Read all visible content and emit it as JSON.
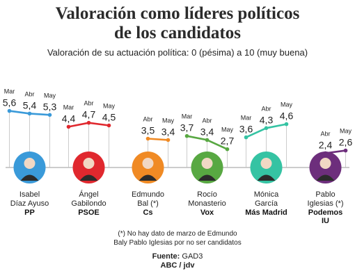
{
  "title_line1": "Valoración como líderes políticos",
  "title_line2": "de los candidatos",
  "subtitle": "Valoración de su actuación política: 0 (pésima) a 10 (muy buena)",
  "note_line1": "(*) No hay dato de marzo de Edmundo",
  "note_line2": "Baly Pablo Iglesias por no ser candidatos",
  "source_label": "Fuente:",
  "source_value": "GAD3",
  "credit": "ABC / jdv",
  "chart_data": {
    "type": "line",
    "scale": [
      0,
      10
    ],
    "candidates": [
      {
        "name_lines": [
          "Isabel",
          "Díaz Ayuso"
        ],
        "party_lines": [
          "PP"
        ],
        "color": "#3a9ad9",
        "points": [
          {
            "month": "Mar",
            "value": "5,6",
            "v": 5.6
          },
          {
            "month": "Abr",
            "value": "5,4",
            "v": 5.4
          },
          {
            "month": "May",
            "value": "5,3",
            "v": 5.3
          }
        ]
      },
      {
        "name_lines": [
          "Ángel",
          "Gabilondo"
        ],
        "party_lines": [
          "PSOE"
        ],
        "color": "#e0282e",
        "points": [
          {
            "month": "Mar",
            "value": "4,4",
            "v": 4.4
          },
          {
            "month": "Abr",
            "value": "4,7",
            "v": 4.7
          },
          {
            "month": "May",
            "value": "4,5",
            "v": 4.5
          }
        ]
      },
      {
        "name_lines": [
          "Edmundo",
          "Bal (*)"
        ],
        "party_lines": [
          "Cs"
        ],
        "color": "#f08a24",
        "points": [
          {
            "month": "Abr",
            "value": "3,5",
            "v": 3.5
          },
          {
            "month": "May",
            "value": "3,4",
            "v": 3.4
          }
        ]
      },
      {
        "name_lines": [
          "Rocío",
          "Monasterio"
        ],
        "party_lines": [
          "Vox"
        ],
        "color": "#58a842",
        "points": [
          {
            "month": "Mar",
            "value": "3,7",
            "v": 3.7
          },
          {
            "month": "Abr",
            "value": "3,4",
            "v": 3.4
          },
          {
            "month": "May",
            "value": "2,7",
            "v": 2.7
          }
        ]
      },
      {
        "name_lines": [
          "Mónica",
          "García"
        ],
        "party_lines": [
          "Más Madrid"
        ],
        "color": "#35c3a3",
        "points": [
          {
            "month": "Mar",
            "value": "3,6",
            "v": 3.6
          },
          {
            "month": "Abr",
            "value": "4,3",
            "v": 4.3
          },
          {
            "month": "May",
            "value": "4,6",
            "v": 4.6
          }
        ]
      },
      {
        "name_lines": [
          "Pablo",
          "Iglesias (*)"
        ],
        "party_lines": [
          "Podemos",
          "IU"
        ],
        "color": "#6d2e7c",
        "points": [
          {
            "month": "Abr",
            "value": "2,4",
            "v": 2.4
          },
          {
            "month": "May",
            "value": "2,6",
            "v": 2.6
          }
        ]
      }
    ]
  }
}
